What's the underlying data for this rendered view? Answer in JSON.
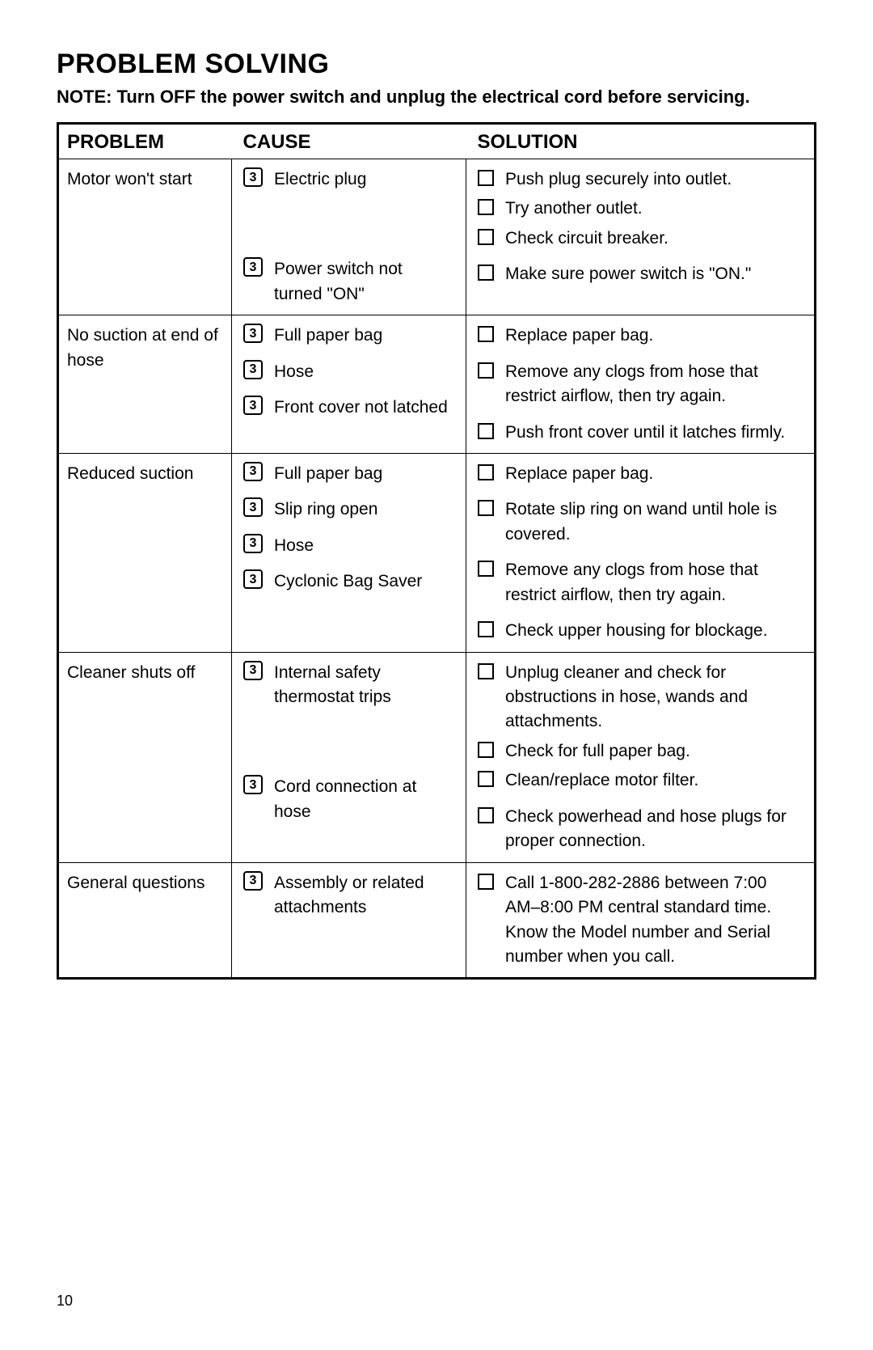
{
  "title": "PROBLEM SOLVING",
  "note": "NOTE:  Turn OFF the power switch and unplug the electrical cord before servicing.",
  "page_number": "10",
  "cause_glyph": "3",
  "headers": {
    "problem": "PROBLEM",
    "cause": "CAUSE",
    "solution": "SOLUTION"
  },
  "rows": [
    {
      "problem": "Motor won't start",
      "groups": [
        {
          "cause": "Electric plug",
          "solutions": [
            "Push plug securely into outlet.",
            "Try another outlet.",
            "Check circuit breaker."
          ]
        },
        {
          "cause": "Power switch not turned \"ON\"",
          "solutions": [
            "Make sure power switch is \"ON.\""
          ]
        }
      ]
    },
    {
      "problem": "No suction at end of hose",
      "groups": [
        {
          "cause": "Full paper bag",
          "solutions": [
            "Replace paper bag."
          ]
        },
        {
          "cause": "Hose",
          "solutions": [
            "Remove any clogs from hose that restrict airflow, then try again."
          ]
        },
        {
          "cause": "Front cover not latched",
          "solutions": [
            "Push front cover until it latches firmly."
          ]
        }
      ]
    },
    {
      "problem": "Reduced suction",
      "groups": [
        {
          "cause": "Full paper bag",
          "solutions": [
            "Replace paper bag."
          ]
        },
        {
          "cause": "Slip ring open",
          "solutions": [
            "Rotate slip ring on wand until hole is covered."
          ]
        },
        {
          "cause": "Hose",
          "solutions": [
            "Remove any clogs from hose that restrict airflow, then try again."
          ]
        },
        {
          "cause": "Cyclonic Bag Saver",
          "solutions": [
            "Check upper housing for blockage."
          ]
        }
      ]
    },
    {
      "problem": "Cleaner shuts off",
      "groups": [
        {
          "cause": "Internal safety thermostat trips",
          "solutions": [
            "Unplug cleaner and check for obstructions in hose, wands and attachments.",
            "Check for full paper bag.",
            "Clean/replace motor filter."
          ]
        },
        {
          "cause": "Cord connection at hose",
          "solutions": [
            "Check powerhead and hose plugs for proper connection."
          ]
        }
      ]
    },
    {
      "problem": "General questions",
      "groups": [
        {
          "cause": "Assembly or related attachments",
          "solutions": [
            "Call 1-800-282-2886 between 7:00 AM–8:00 PM central standard time. Know the Model number and Serial number when you call."
          ]
        }
      ]
    }
  ]
}
